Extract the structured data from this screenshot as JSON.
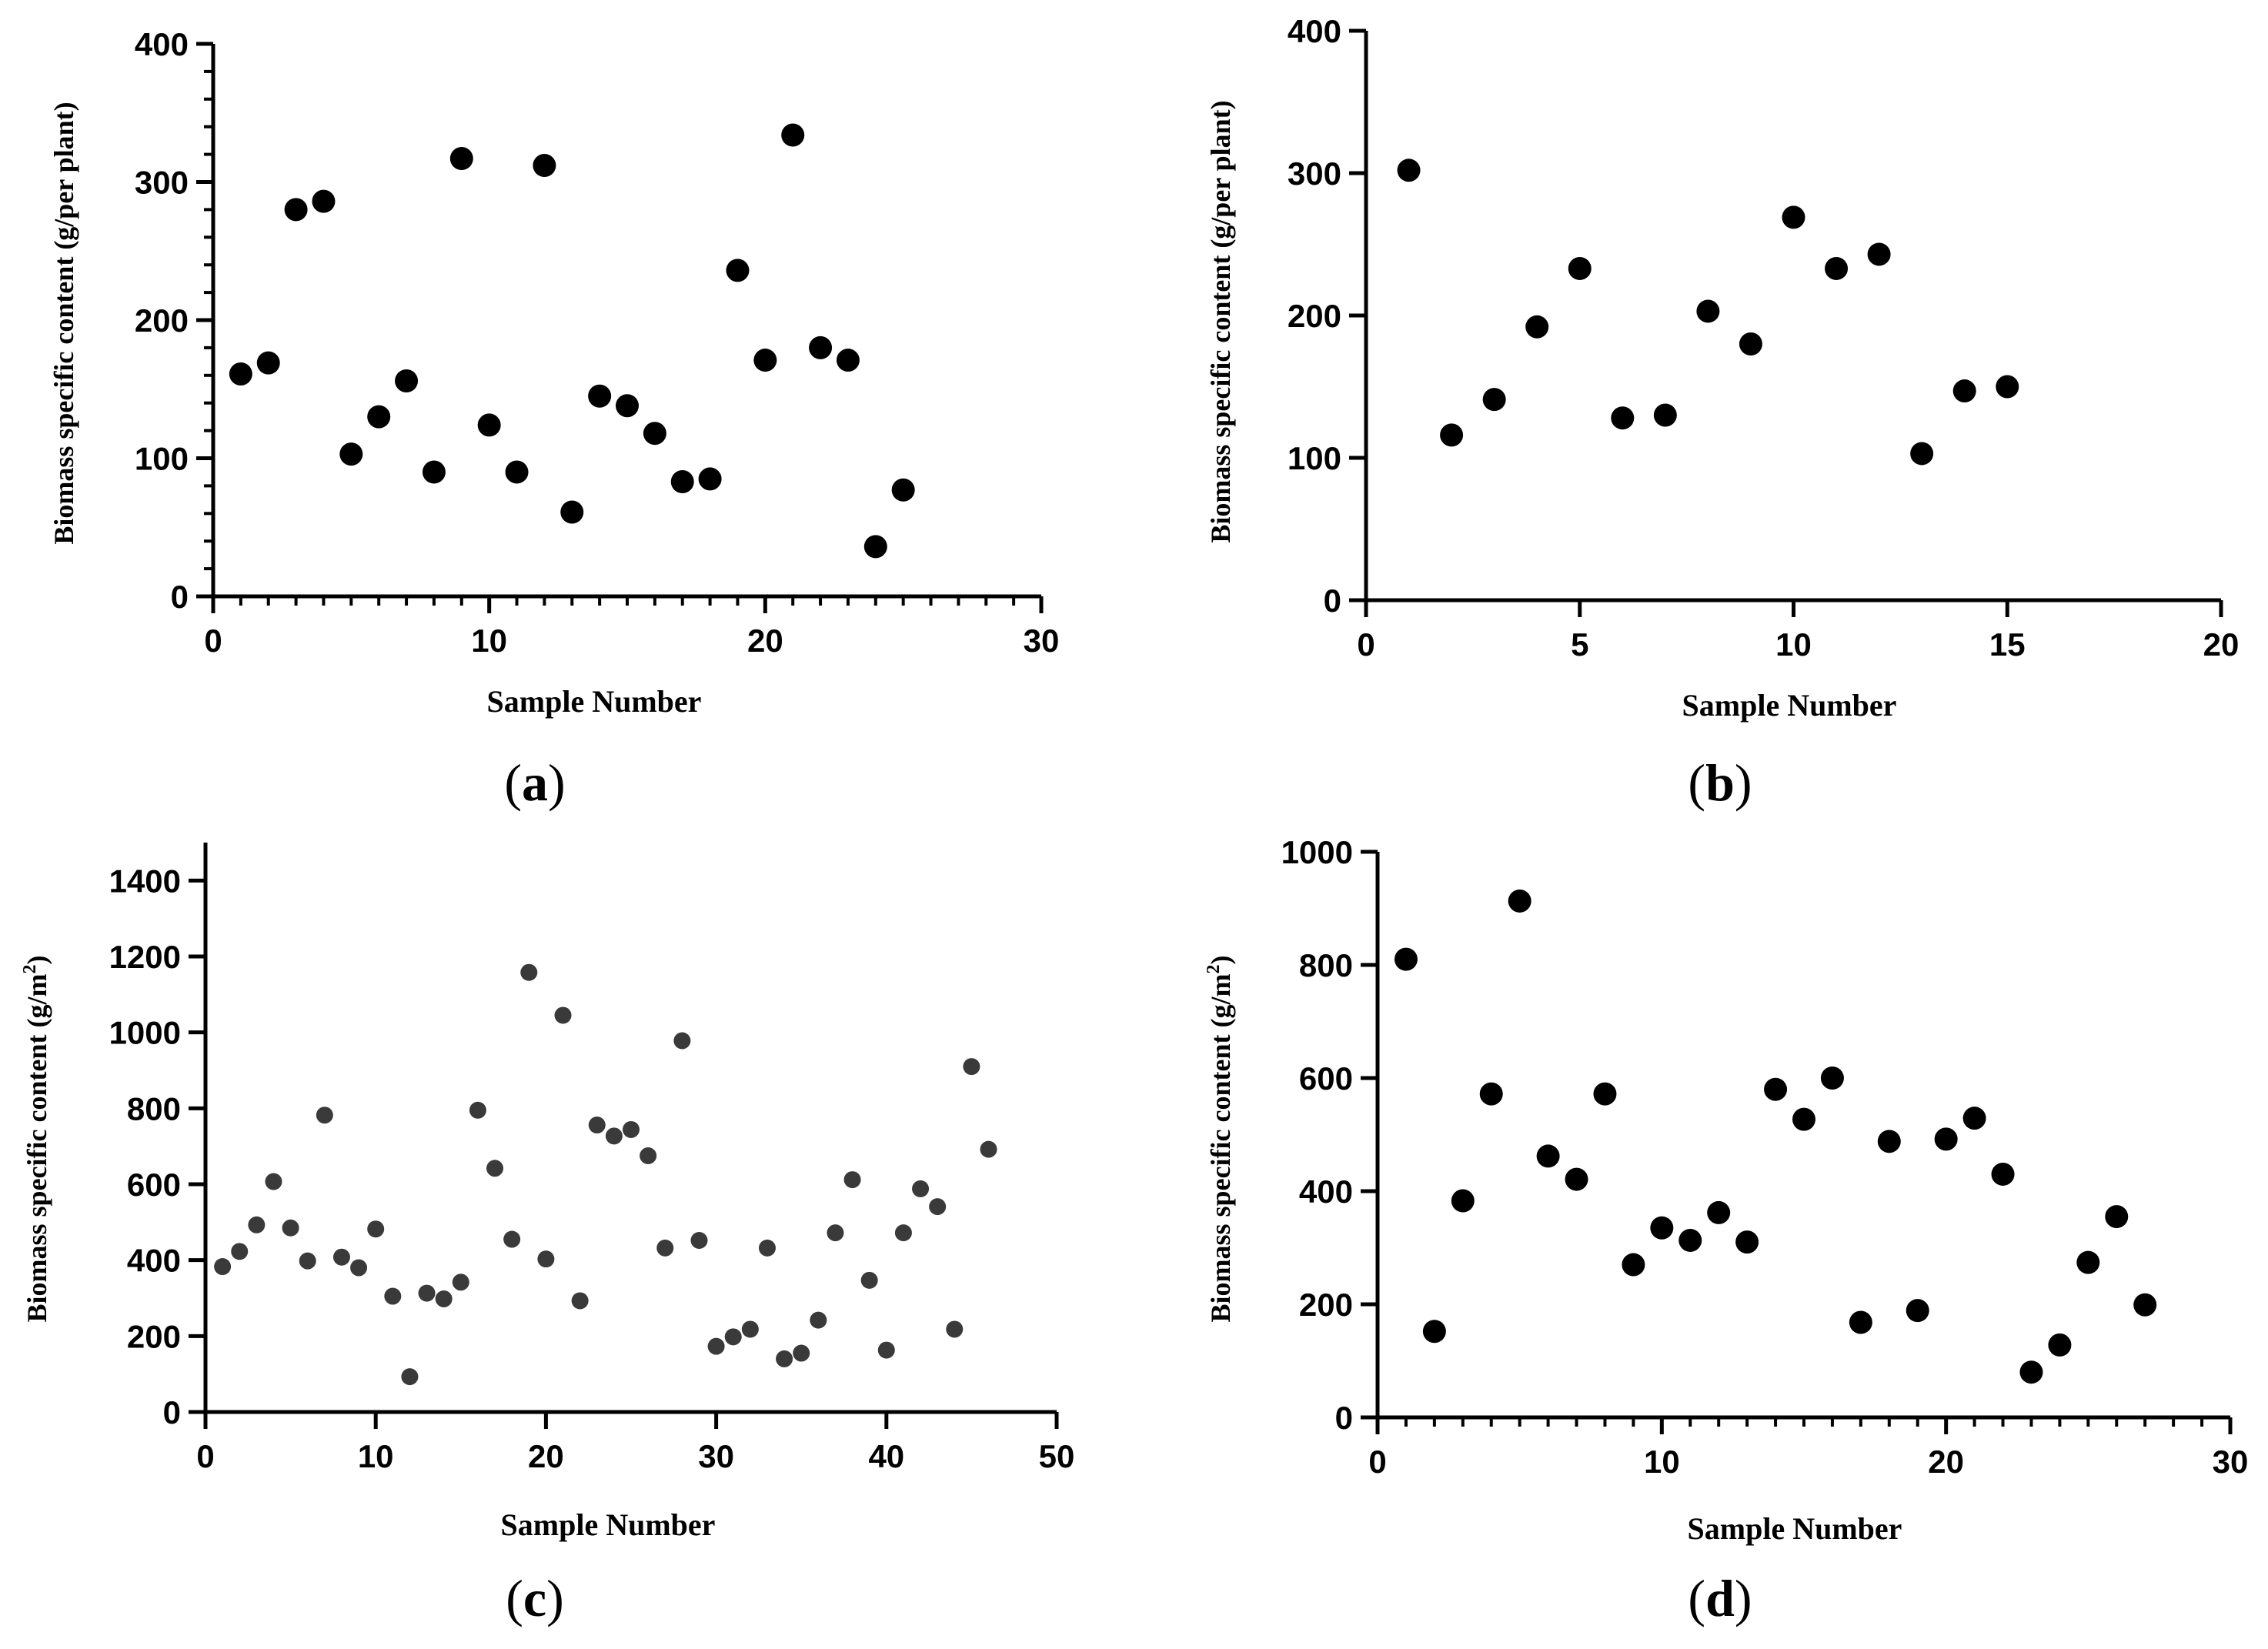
{
  "chart_data": [
    {
      "id": "a",
      "type": "scatter",
      "panel_label": "a",
      "xlabel": "Sample Number",
      "ylabel": "Biomass specific content (g/per plant)",
      "ylabel_sup": "",
      "ylabel_tail": "",
      "xlim": [
        0,
        30
      ],
      "ylim": [
        0,
        400
      ],
      "xticks": [
        0,
        10,
        20,
        30
      ],
      "yticks": [
        0,
        100,
        200,
        300,
        400
      ],
      "x_minor_step": 1,
      "y_minor_step": 20,
      "marker_color": "#000000",
      "x": [
        1,
        2,
        3,
        4,
        5,
        6,
        7,
        8,
        9,
        10,
        11,
        12,
        13,
        14,
        15,
        16,
        17,
        18,
        19,
        20,
        21,
        22,
        23,
        24,
        25
      ],
      "y": [
        161,
        169,
        280,
        286,
        103,
        130,
        156,
        90,
        317,
        124,
        90,
        312,
        61,
        145,
        138,
        118,
        83,
        85,
        236,
        171,
        334,
        180,
        171,
        36,
        77
      ]
    },
    {
      "id": "b",
      "type": "scatter",
      "panel_label": "b",
      "xlabel": "Sample Number",
      "ylabel": "Biomass specific content (g/per plant)",
      "ylabel_sup": "",
      "ylabel_tail": "",
      "xlim": [
        0,
        20
      ],
      "ylim": [
        0,
        400
      ],
      "xticks": [
        0,
        5,
        10,
        15,
        20
      ],
      "yticks": [
        0,
        100,
        200,
        300,
        400
      ],
      "x_minor_step": 0,
      "y_minor_step": 0,
      "marker_color": "#000000",
      "x": [
        1,
        2,
        3,
        4,
        5,
        6,
        7,
        8,
        9,
        10,
        11,
        12,
        13,
        14,
        15
      ],
      "y": [
        302,
        116,
        141,
        192,
        233,
        128,
        130,
        203,
        180,
        269,
        233,
        243,
        103,
        147,
        150
      ]
    },
    {
      "id": "c",
      "type": "scatter",
      "panel_label": "c",
      "xlabel": "Sample Number",
      "ylabel": "Biomass specific content (g/m",
      "ylabel_sup": "2",
      "ylabel_tail": ")",
      "xlim": [
        0,
        50
      ],
      "ylim": [
        0,
        1500
      ],
      "xticks": [
        0,
        10,
        20,
        30,
        40,
        50
      ],
      "yticks": [
        0,
        200,
        400,
        600,
        800,
        1000,
        1200,
        1400
      ],
      "x_minor_step": 0,
      "y_minor_step": 0,
      "marker_color": "#3a3a3a",
      "x": [
        1,
        2,
        3,
        4,
        5,
        6,
        7,
        8,
        9,
        10,
        11,
        12,
        13,
        14,
        15,
        16,
        17,
        18,
        19,
        20,
        21,
        22,
        23,
        24,
        25,
        26,
        27,
        28,
        29,
        30,
        31,
        32,
        33,
        34,
        35,
        36,
        37,
        38,
        39,
        40,
        41,
        42,
        43,
        44,
        45,
        46
      ],
      "y": [
        383,
        423,
        493,
        607,
        485,
        398,
        782,
        408,
        380,
        482,
        305,
        93,
        313,
        298,
        342,
        795,
        642,
        455,
        1158,
        403,
        1045,
        293,
        756,
        727,
        744,
        675,
        432,
        978,
        452,
        173,
        198,
        218,
        432,
        140,
        155,
        242,
        472,
        612,
        347,
        163,
        472,
        588,
        541,
        218,
        910,
        692
      ]
    },
    {
      "id": "d",
      "type": "scatter",
      "panel_label": "d",
      "xlabel": "Sample Number",
      "ylabel": "Biomass specific content (g/m",
      "ylabel_sup": "2",
      "ylabel_tail": ")",
      "xlim": [
        0,
        30
      ],
      "ylim": [
        0,
        1000
      ],
      "xticks": [
        0,
        10,
        20,
        30
      ],
      "yticks": [
        0,
        200,
        400,
        600,
        800,
        1000
      ],
      "x_minor_step": 1,
      "y_minor_step": 0,
      "marker_color": "#000000",
      "x": [
        1,
        2,
        3,
        4,
        5,
        6,
        7,
        8,
        9,
        10,
        11,
        12,
        13,
        14,
        15,
        16,
        17,
        18,
        19,
        20,
        21,
        22,
        23,
        24,
        25,
        26,
        27
      ],
      "y": [
        810,
        152,
        383,
        572,
        913,
        462,
        421,
        572,
        270,
        335,
        313,
        362,
        310,
        580,
        527,
        600,
        168,
        488,
        189,
        492,
        529,
        430,
        80,
        128,
        274,
        355,
        199
      ]
    }
  ]
}
